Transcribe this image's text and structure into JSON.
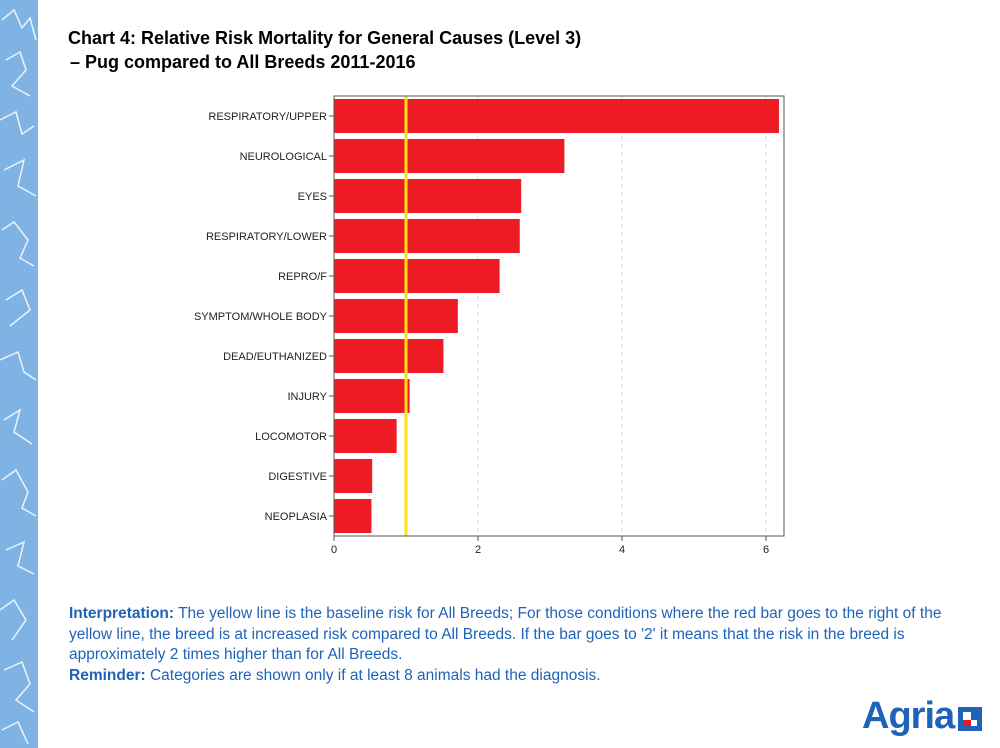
{
  "title": {
    "line1": "Chart 4: Relative Risk Mortality for General Causes (Level 3)",
    "line2": "–  Pug compared to All Breeds 2011-2016"
  },
  "chart_data": {
    "type": "bar",
    "orientation": "horizontal",
    "categories": [
      "RESPIRATORY/UPPER",
      "NEUROLOGICAL",
      "EYES",
      "RESPIRATORY/LOWER",
      "REPRO/F",
      "SYMPTOM/WHOLE BODY",
      "DEAD/EUTHANIZED",
      "INJURY",
      "LOCOMOTOR",
      "DIGESTIVE",
      "NEOPLASIA"
    ],
    "values": [
      6.18,
      3.2,
      2.6,
      2.58,
      2.3,
      1.72,
      1.52,
      1.05,
      0.87,
      0.53,
      0.52
    ],
    "baseline": 1,
    "xlim": [
      0,
      6.25
    ],
    "xticks": [
      "0",
      "2",
      "4",
      "6"
    ],
    "bar_color": "#ed1c24",
    "baseline_color": "#ffe01a",
    "gridlines": "dashed vertical"
  },
  "interpretation": {
    "label": "Interpretation:",
    "text": " The yellow line is the baseline risk for All Breeds; For those conditions where the red bar goes to the right of the yellow line, the breed is at increased risk compared to All Breeds. If the bar goes to '2' it means that the risk in the breed is approximately 2 times higher than for All Breeds."
  },
  "reminder": {
    "label": "Reminder:",
    "text": " Categories are shown only if at least 8 animals had the diagnosis."
  },
  "logo": {
    "text": "Agria",
    "color": "#1e63b8"
  },
  "colors": {
    "accent": "#1e63b8",
    "strip": "#7fb3e3"
  }
}
